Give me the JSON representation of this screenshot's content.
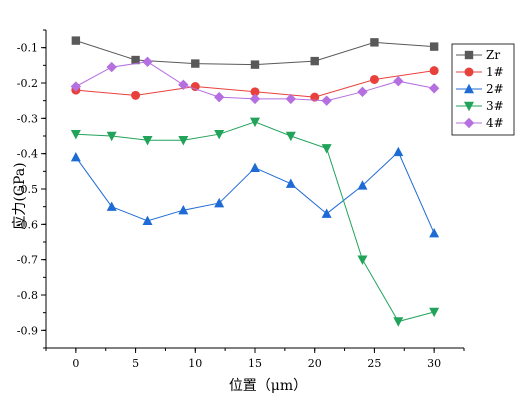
{
  "chart_data": {
    "type": "line",
    "title": "",
    "xlabel": "位置（μm）",
    "ylabel": "应力(GPa)",
    "xlim": [
      -2.5,
      32.5
    ],
    "ylim": [
      -0.95,
      -0.05
    ],
    "x_ticks": [
      "0",
      "5",
      "10",
      "15",
      "20",
      "25",
      "30"
    ],
    "y_ticks": [
      "-0.1",
      "-0.2",
      "-0.3",
      "-0.4",
      "-0.5",
      "-0.6",
      "-0.7",
      "-0.8",
      "-0.9"
    ],
    "legend_position": "top-right",
    "series": [
      {
        "name": "Zr",
        "color": "#595959",
        "marker": "square",
        "points": [
          [
            0,
            -0.08
          ],
          [
            5,
            -0.135
          ],
          [
            10,
            -0.145
          ],
          [
            15,
            -0.148
          ],
          [
            20,
            -0.138
          ],
          [
            25,
            -0.085
          ],
          [
            30,
            -0.097
          ]
        ]
      },
      {
        "name": "1#",
        "color": "#e8413c",
        "marker": "circle",
        "points": [
          [
            0,
            -0.22
          ],
          [
            5,
            -0.235
          ],
          [
            10,
            -0.21
          ],
          [
            15,
            -0.225
          ],
          [
            20,
            -0.24
          ],
          [
            25,
            -0.19
          ],
          [
            30,
            -0.165
          ]
        ]
      },
      {
        "name": "2#",
        "color": "#1f6bd6",
        "marker": "triangle-up",
        "points": [
          [
            0,
            -0.41
          ],
          [
            3,
            -0.55
          ],
          [
            6,
            -0.59
          ],
          [
            9,
            -0.56
          ],
          [
            12,
            -0.54
          ],
          [
            15,
            -0.44
          ],
          [
            18,
            -0.485
          ],
          [
            21,
            -0.57
          ],
          [
            24,
            -0.49
          ],
          [
            27,
            -0.395
          ],
          [
            30,
            -0.625
          ]
        ]
      },
      {
        "name": "3#",
        "color": "#21a35a",
        "marker": "triangle-down",
        "points": [
          [
            0,
            -0.345
          ],
          [
            3,
            -0.35
          ],
          [
            6,
            -0.362
          ],
          [
            9,
            -0.362
          ],
          [
            12,
            -0.345
          ],
          [
            15,
            -0.31
          ],
          [
            18,
            -0.35
          ],
          [
            21,
            -0.385
          ],
          [
            24,
            -0.7
          ],
          [
            27,
            -0.875
          ],
          [
            30,
            -0.848
          ]
        ]
      },
      {
        "name": "4#",
        "color": "#b56fe0",
        "marker": "diamond",
        "points": [
          [
            0,
            -0.21
          ],
          [
            3,
            -0.155
          ],
          [
            6,
            -0.14
          ],
          [
            9,
            -0.205
          ],
          [
            12,
            -0.24
          ],
          [
            15,
            -0.245
          ],
          [
            18,
            -0.245
          ],
          [
            21,
            -0.25
          ],
          [
            24,
            -0.225
          ],
          [
            27,
            -0.195
          ],
          [
            30,
            -0.215
          ]
        ]
      }
    ]
  }
}
